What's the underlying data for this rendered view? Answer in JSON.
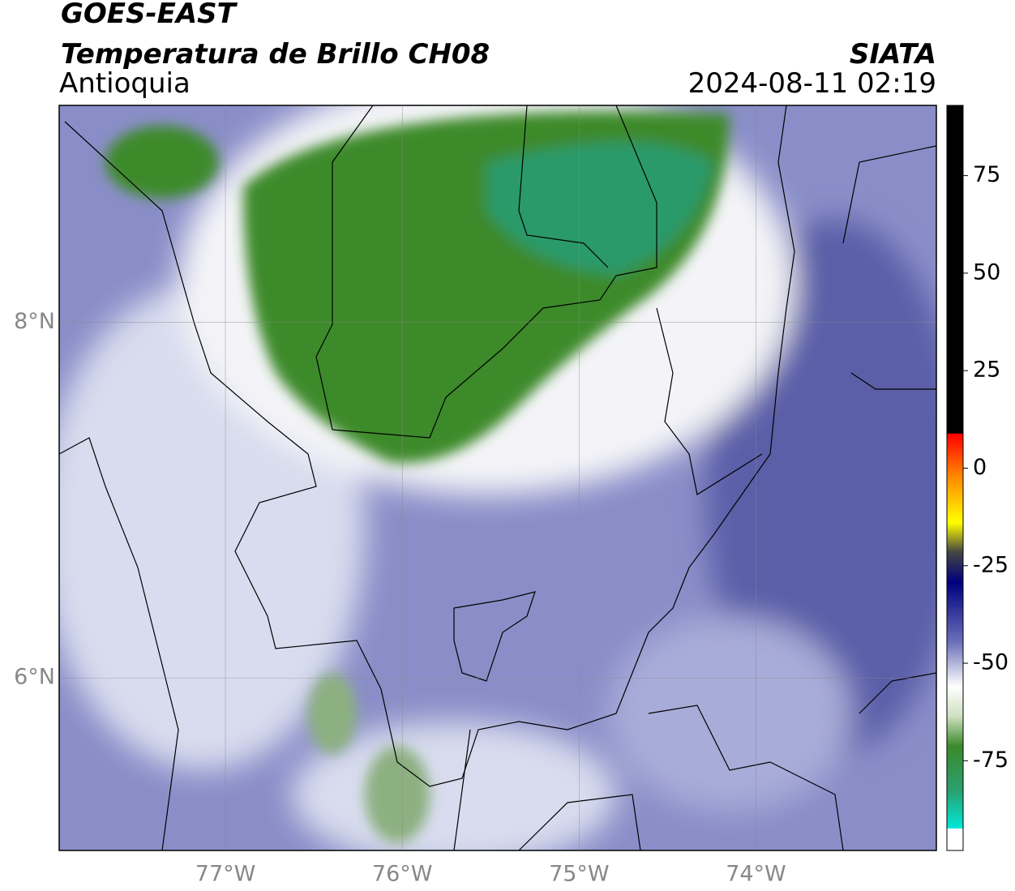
{
  "map": {
    "title": "GOES-EAST",
    "subtitle": "Temperatura de Brillo CH08",
    "region": "Antioquia",
    "source": "SIATA",
    "datetime": "2024-08-11 02:19",
    "xlim": [
      -77.94,
      -72.98
    ],
    "ylim": [
      5.03,
      9.22
    ],
    "xticks": [
      {
        "value": -77,
        "label": "77°W"
      },
      {
        "value": -76,
        "label": "76°W"
      },
      {
        "value": -75,
        "label": "75°W"
      },
      {
        "value": -74,
        "label": "74°W"
      }
    ],
    "yticks": [
      {
        "value": 8,
        "label": "8°N"
      },
      {
        "value": 6,
        "label": "6°N"
      }
    ],
    "colorbar": {
      "lim": [
        -98,
        93
      ],
      "ticks": [
        75,
        50,
        25,
        0,
        -25,
        -50,
        -75
      ]
    }
  }
}
